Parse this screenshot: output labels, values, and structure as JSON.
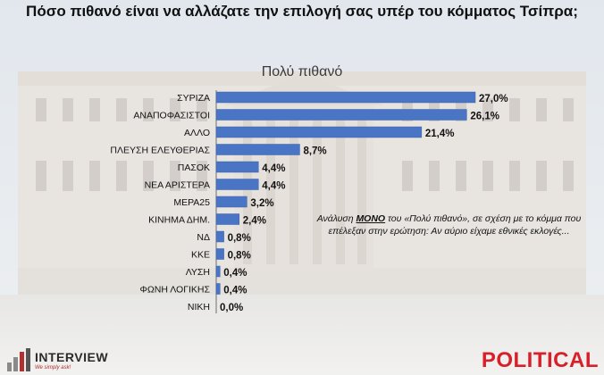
{
  "title": "Πόσο πιθανό είναι να αλλάζατε την επιλογή σας υπέρ του κόμματος Τσίπρα;",
  "subtitle": "Πολύ πιθανό",
  "note": {
    "prefix": "Ανάλυση ",
    "emphasis": "ΜΟΝΟ",
    "suffix": " του «Πολύ πιθανό», σε σχέση με το κόμμα που επέλεξαν στην ερώτηση: Αν αύριο είχαμε εθνικές εκλογές..."
  },
  "footer": {
    "interview_logo": "INTERVIEW",
    "interview_tagline": "We simply ask!",
    "political_logo": "POLITICAL"
  },
  "colors": {
    "bar": "#4a74c4",
    "bar_edge": "#3d62ab"
  },
  "chart_data": {
    "type": "bar",
    "orientation": "horizontal",
    "categories": [
      "ΣΥΡΙΖΑ",
      "ΑΝΑΠΟΦΑΣΙΣΤΟΙ",
      "ΑΛΛΟ",
      "ΠΛΕΥΣΗ ΕΛΕΥΘΕΡΙΑΣ",
      "ΠΑΣΟΚ",
      "ΝΕΑ ΑΡΙΣΤΕΡΑ",
      "ΜΕΡΑ25",
      "ΚΙΝΗΜΑ ΔΗΜ.",
      "ΝΔ",
      "ΚΚΕ",
      "ΛΥΣΗ",
      "ΦΩΝΗ ΛΟΓΙΚΗΣ",
      "ΝΙΚΗ"
    ],
    "values": [
      27.0,
      26.1,
      21.4,
      8.7,
      4.4,
      4.4,
      3.2,
      2.4,
      0.8,
      0.8,
      0.4,
      0.4,
      0.0
    ],
    "labels": [
      "27,0%",
      "26,1%",
      "21,4%",
      "8,7%",
      "4,4%",
      "4,4%",
      "3,2%",
      "2,4%",
      "0,8%",
      "0,8%",
      "0,4%",
      "0,4%",
      "0,0%"
    ],
    "title": "Πολύ πιθανό",
    "xlim": [
      0,
      27.0
    ],
    "grid": false
  }
}
